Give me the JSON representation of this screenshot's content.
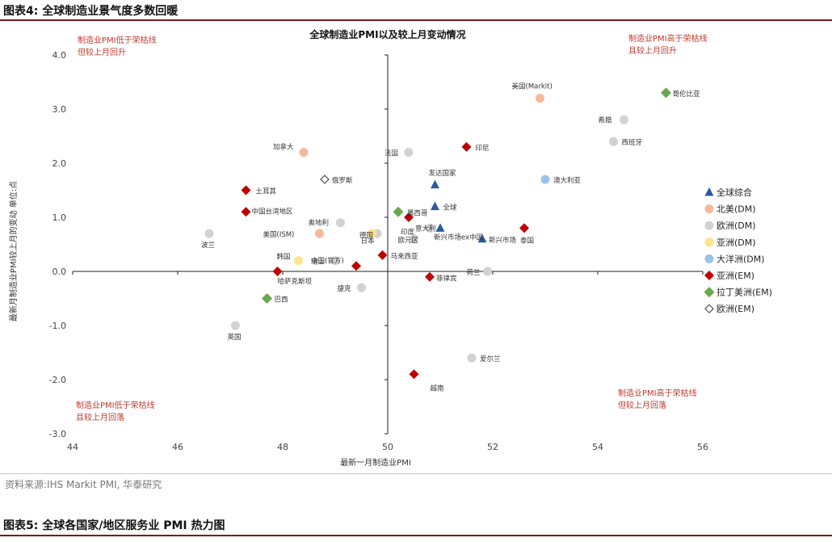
{
  "header": {
    "title": "图表4:  全球制造业景气度多数回暖"
  },
  "footer": {
    "source": "资料来源:IHS Markit PMI, 华泰研究"
  },
  "next_header": {
    "title": "图表5:  全球各国家/地区服务业 PMI 热力图"
  },
  "colors": {
    "global": "#2b5a9e",
    "na_dm": "#f4b99b",
    "eu_dm": "#d2d2d2",
    "asia_dm": "#ffe58a",
    "oceania_dm": "#9cc3e8",
    "asia_em": "#c00000",
    "latam_em": "#6aa84f",
    "eu_em": "#ffffff"
  },
  "chart_data": {
    "type": "scatter",
    "title": "全球制造业PMI以及较上月变动情况",
    "xlabel": "最新一月制造业PMI",
    "ylabel": "最新月制造业PMI较上月的变动  单位:点",
    "xlim": [
      44,
      56
    ],
    "ylim": [
      -3,
      4
    ],
    "xticks": [
      "44",
      "46",
      "48",
      "50",
      "52",
      "54",
      "56"
    ],
    "yticks": [
      "-3.0",
      "-2.0",
      "-1.0",
      "0.0",
      "1.0",
      "2.0",
      "3.0",
      "4.0"
    ],
    "quadrants": {
      "top_left": [
        "制造业PMI低于荣枯线",
        "但较上月回升"
      ],
      "top_right": [
        "制造业PMI高于荣枯线",
        "且较上月回升"
      ],
      "bottom_left": [
        "制造业PMI低于荣枯线",
        "且较上月回落"
      ],
      "bottom_right": [
        "制造业PMI高于荣枯线",
        "但较上月回落"
      ]
    },
    "legend": [
      {
        "key": "global",
        "label": "全球综合"
      },
      {
        "key": "na_dm",
        "label": "北美(DM)"
      },
      {
        "key": "eu_dm",
        "label": "欧洲(DM)"
      },
      {
        "key": "asia_dm",
        "label": "亚洲(DM)"
      },
      {
        "key": "oceania_dm",
        "label": "大洋洲(DM)"
      },
      {
        "key": "asia_em",
        "label": "亚洲(EM)"
      },
      {
        "key": "latam_em",
        "label": "拉丁美洲(EM)"
      },
      {
        "key": "eu_em",
        "label": "欧洲(EM)"
      }
    ],
    "points": [
      {
        "name": "全球",
        "group": "global",
        "x": 50.9,
        "y": 1.2
      },
      {
        "name": "发达国家",
        "group": "global",
        "x": 50.9,
        "y": 1.6
      },
      {
        "name": "新兴市场",
        "group": "global",
        "x": 51.8,
        "y": 0.6
      },
      {
        "name": "新兴市场ex中国",
        "group": "global",
        "x": 51.0,
        "y": 0.8
      },
      {
        "name": "美国(Markit)",
        "group": "na_dm",
        "x": 52.9,
        "y": 3.2
      },
      {
        "name": "加拿大",
        "group": "na_dm",
        "x": 48.4,
        "y": 2.2
      },
      {
        "name": "美国(ISM)",
        "group": "na_dm",
        "x": 48.7,
        "y": 0.7
      },
      {
        "name": "希腊",
        "group": "eu_dm",
        "x": 54.5,
        "y": 2.8
      },
      {
        "name": "西班牙",
        "group": "eu_dm",
        "x": 54.3,
        "y": 2.4
      },
      {
        "name": "法国",
        "group": "eu_dm",
        "x": 50.4,
        "y": 2.2
      },
      {
        "name": "奥地利",
        "group": "eu_dm",
        "x": 49.1,
        "y": 0.9
      },
      {
        "name": "德国",
        "group": "eu_dm",
        "x": 49.8,
        "y": 0.7
      },
      {
        "name": "欧元区",
        "group": "eu_dm",
        "x": 50.5,
        "y": 0.6
      },
      {
        "name": "瑞士",
        "group": "eu_dm",
        "x": 49.0,
        "y": 0.2
      },
      {
        "name": "荷兰",
        "group": "eu_dm",
        "x": 51.9,
        "y": 0.0
      },
      {
        "name": "捷克",
        "group": "eu_dm",
        "x": 49.5,
        "y": -0.3
      },
      {
        "name": "波兰",
        "group": "eu_dm",
        "x": 46.6,
        "y": 0.7
      },
      {
        "name": "英国",
        "group": "eu_dm",
        "x": 47.1,
        "y": -1.0
      },
      {
        "name": "爱尔兰",
        "group": "eu_dm",
        "x": 51.6,
        "y": -1.6
      },
      {
        "name": "意大利",
        "group": "eu_dm",
        "x": 50.8,
        "y": 0.8
      },
      {
        "name": "日本",
        "group": "asia_dm",
        "x": 49.7,
        "y": 0.7
      },
      {
        "name": "韩国",
        "group": "asia_dm",
        "x": 48.3,
        "y": 0.2
      },
      {
        "name": "澳大利亚",
        "group": "oceania_dm",
        "x": 53.0,
        "y": 1.7
      },
      {
        "name": "印尼",
        "group": "asia_em",
        "x": 51.5,
        "y": 2.3
      },
      {
        "name": "土耳其",
        "group": "asia_em",
        "x": 47.3,
        "y": 1.5
      },
      {
        "name": "中国台湾地区",
        "group": "asia_em",
        "x": 47.3,
        "y": 1.1
      },
      {
        "name": "印度",
        "group": "asia_em",
        "x": 50.4,
        "y": 1.0
      },
      {
        "name": "泰国",
        "group": "asia_em",
        "x": 52.6,
        "y": 0.8
      },
      {
        "name": "马来西亚",
        "group": "asia_em",
        "x": 49.9,
        "y": 0.3
      },
      {
        "name": "中国(官方)",
        "group": "asia_em",
        "x": 49.4,
        "y": 0.1
      },
      {
        "name": "哈萨克斯坦",
        "group": "asia_em",
        "x": 47.9,
        "y": 0.0
      },
      {
        "name": "菲律宾",
        "group": "asia_em",
        "x": 50.8,
        "y": -0.1
      },
      {
        "name": "越南",
        "group": "asia_em",
        "x": 50.5,
        "y": -1.9
      },
      {
        "name": "哥伦比亚",
        "group": "latam_em",
        "x": 55.3,
        "y": 3.3
      },
      {
        "name": "墨西哥",
        "group": "latam_em",
        "x": 50.2,
        "y": 1.1
      },
      {
        "name": "巴西",
        "group": "latam_em",
        "x": 47.7,
        "y": -0.5
      },
      {
        "name": "俄罗斯",
        "group": "eu_em",
        "x": 48.8,
        "y": 1.7
      }
    ]
  }
}
